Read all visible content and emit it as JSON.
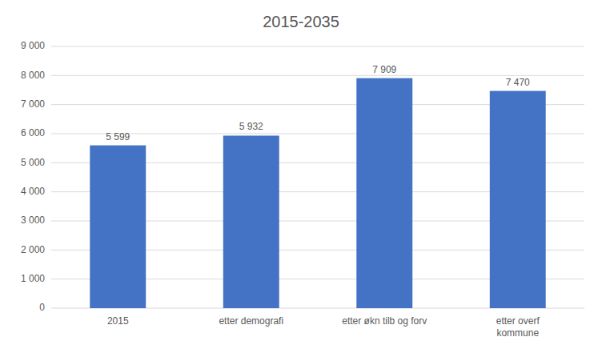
{
  "chart_data": {
    "type": "bar",
    "title": "2015-2035",
    "categories": [
      "2015",
      "etter demografi",
      "etter økn tilb og forv",
      "etter overf\nkommune"
    ],
    "values": [
      5599,
      5932,
      7909,
      7470
    ],
    "value_labels": [
      "5 599",
      "5 932",
      "7 909",
      "7 470"
    ],
    "data_labels": true,
    "color": "#4472C4",
    "ylim": [
      0,
      9000
    ],
    "yticks": [
      0,
      {
        "value": 1000,
        "label": "1 000"
      },
      {
        "value": 2000,
        "label": "2 000"
      },
      {
        "value": 3000,
        "label": "3 000"
      },
      {
        "value": 4000,
        "label": "4 000"
      },
      {
        "value": 5000,
        "label": "5 000"
      },
      {
        "value": 6000,
        "label": "6 000"
      },
      {
        "value": 7000,
        "label": "7 000"
      },
      {
        "value": 8000,
        "label": "8 000"
      },
      {
        "value": 9000,
        "label": "9 000"
      }
    ],
    "grid": true
  }
}
